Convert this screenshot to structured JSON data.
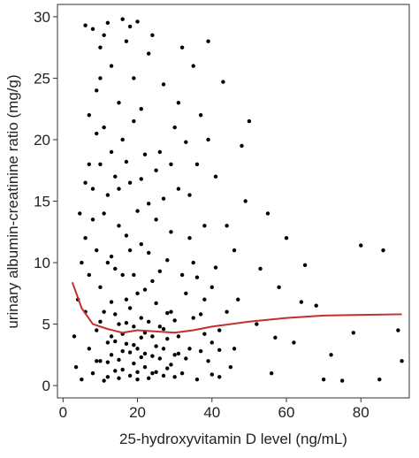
{
  "chart_data": {
    "type": "scatter",
    "xlabel": "25-hydroxyvitamin D level (ng/mL)",
    "ylabel": "urinary albumin-creatinine ratio (mg/g)",
    "color": "#000000",
    "x": [
      10,
      12,
      14,
      15,
      16,
      18,
      20,
      22,
      24,
      26,
      8,
      9,
      11,
      13,
      17,
      19,
      21,
      23,
      25,
      28,
      7,
      10,
      12,
      14,
      16,
      18,
      20,
      22,
      27,
      30,
      6,
      9,
      11,
      13,
      15,
      17,
      19,
      21,
      24,
      29,
      8,
      10,
      12,
      14,
      16,
      18,
      20,
      22,
      25,
      28,
      7,
      9,
      11,
      13,
      15,
      17,
      19,
      21,
      23,
      26,
      6,
      8,
      10,
      12,
      16,
      18,
      20,
      24,
      27,
      30,
      31,
      32,
      33,
      34,
      35,
      36,
      37,
      38,
      39,
      40,
      41,
      42,
      43,
      44,
      45,
      46,
      48,
      50,
      52,
      55,
      56,
      58,
      60,
      62,
      65,
      68,
      70,
      75,
      80,
      86,
      90,
      91,
      85,
      78,
      72,
      64,
      57,
      53,
      49,
      47,
      5,
      6,
      7,
      8,
      9,
      10,
      11,
      12,
      13,
      14,
      15,
      16,
      17,
      18,
      19,
      20,
      21,
      22,
      23,
      24,
      25,
      26,
      27,
      28,
      29,
      30,
      31,
      32,
      33,
      34,
      35,
      36,
      37,
      38,
      39,
      40,
      41,
      42,
      44,
      46,
      3,
      4,
      5,
      6,
      7,
      4.5,
      3.5,
      9,
      10,
      11,
      13,
      15,
      17,
      19,
      21,
      23,
      25,
      27,
      29,
      31,
      33,
      35,
      37,
      39,
      32,
      34,
      36,
      38,
      40,
      42,
      12,
      13,
      14,
      15,
      16,
      17,
      18,
      19,
      20,
      21,
      22,
      23,
      24,
      25,
      26,
      27,
      28,
      29,
      30,
      31
    ],
    "y": [
      2,
      3.5,
      1.2,
      5,
      2.8,
      0.8,
      3,
      1.5,
      4,
      2.2,
      1,
      4.5,
      6,
      2.5,
      7,
      1.8,
      5.5,
      0.6,
      3.2,
      1.4,
      3,
      8,
      0.7,
      9.5,
      4.2,
      6.3,
      1.1,
      7.8,
      4.6,
      2.5,
      12,
      11,
      14,
      10.5,
      13,
      12.2,
      9,
      11.5,
      8.5,
      6,
      16,
      18,
      15.5,
      17,
      20,
      16.5,
      14.2,
      18.8,
      13.5,
      10.2,
      22,
      24,
      21,
      26,
      23,
      28,
      25,
      22.5,
      27,
      19,
      29.3,
      29,
      27.5,
      29.5,
      29.8,
      29.2,
      29.6,
      28.5,
      24.5,
      21,
      4,
      1,
      7.5,
      3,
      10,
      0.5,
      5.8,
      13,
      2,
      8,
      17,
      4.5,
      24.7,
      6,
      1.5,
      11,
      19.5,
      21.5,
      5,
      14,
      1,
      8,
      12,
      3.5,
      9.8,
      6.5,
      0.5,
      0.4,
      11.4,
      11,
      4.5,
      2,
      0.5,
      4.3,
      2.5,
      6.8,
      3.9,
      9.5,
      15,
      7,
      0.5,
      6,
      9,
      13.5,
      2,
      5.2,
      0.4,
      10,
      6.8,
      3.6,
      0.6,
      9,
      3.4,
      11,
      4.8,
      7.5,
      2.3,
      4.3,
      10.8,
      1,
      6.7,
      9.3,
      0.8,
      3.8,
      12.5,
      5.3,
      16,
      9,
      2.2,
      15.5,
      5.5,
      18,
      2.8,
      7,
      20,
      3.5,
      9.6,
      0.7,
      13,
      3,
      4,
      7,
      10,
      16.5,
      18,
      14,
      1.5,
      20.5,
      25,
      28.5,
      19,
      16,
      18.2,
      21.5,
      16.8,
      14.8,
      17.5,
      15.2,
      18,
      23,
      19.8,
      26,
      22,
      28,
      27.5,
      12,
      8.8,
      4.2,
      0.9,
      2.9,
      1.9,
      4,
      5.8,
      2.1,
      1.3,
      5.1,
      2.7,
      3.3,
      0.5,
      3.9,
      2.6,
      5.2,
      2.4,
      1.1,
      4.8,
      3,
      5.9,
      1.7,
      0.7,
      2.6
    ],
    "trend": {
      "color": "#c0302f",
      "x": [
        2.5,
        5,
        8,
        12,
        16,
        20,
        25,
        30,
        35,
        40,
        50,
        60,
        70,
        80,
        91
      ],
      "y": [
        8.4,
        6.3,
        5,
        4.6,
        4.3,
        4.5,
        4.4,
        4.3,
        4.5,
        4.8,
        5.2,
        5.5,
        5.7,
        5.75,
        5.8
      ]
    },
    "xlim": [
      -1.5,
      93
    ],
    "ylim": [
      -1,
      31
    ],
    "xticks": [
      0,
      20,
      40,
      60,
      80
    ],
    "yticks": [
      0,
      5,
      10,
      15,
      20,
      25,
      30
    ]
  }
}
